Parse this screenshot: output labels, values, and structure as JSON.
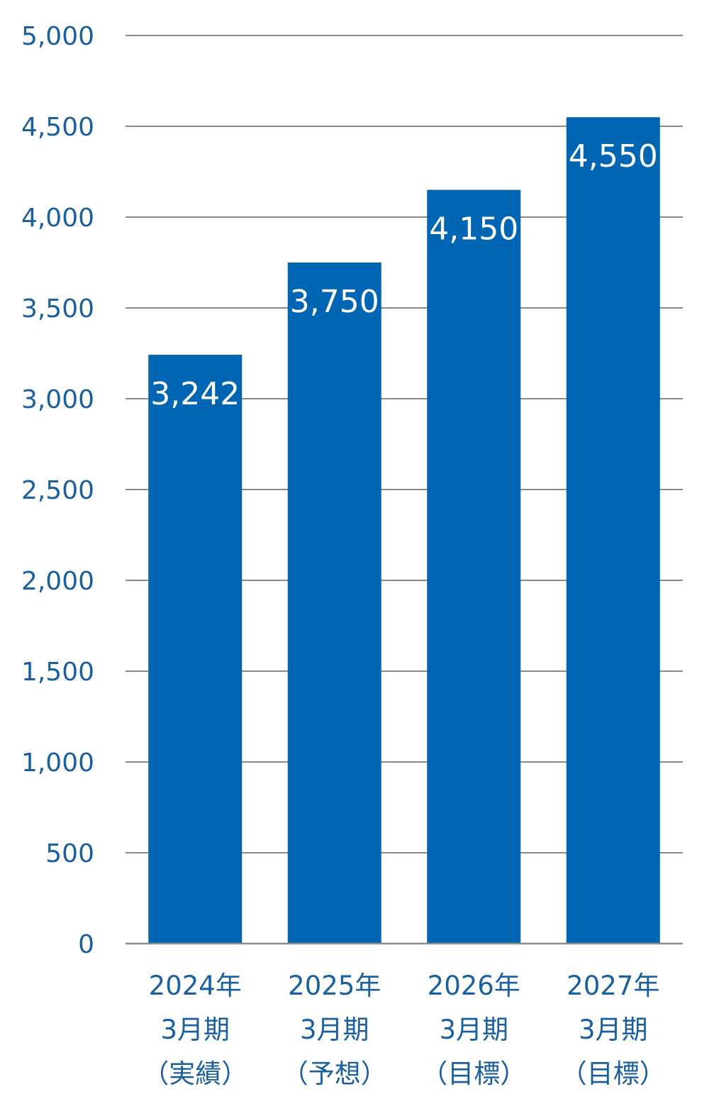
{
  "colors": {
    "bar": "#0066b3",
    "axis_text": "#1a5f9e",
    "gridline": "#8c8c8c",
    "data_label": "#ffffff"
  },
  "chart_data": {
    "type": "bar",
    "categories": [
      [
        "2024年",
        "3月期",
        "（実績）"
      ],
      [
        "2025年",
        "3月期",
        "（予想）"
      ],
      [
        "2026年",
        "3月期",
        "（目標）"
      ],
      [
        "2027年",
        "3月期",
        "（目標）"
      ]
    ],
    "values": [
      3242,
      3750,
      4150,
      4550
    ],
    "data_labels": [
      "3,242",
      "3,750",
      "4,150",
      "4,550"
    ],
    "ylim": [
      0,
      5000
    ],
    "yticks": [
      0,
      500,
      1000,
      1500,
      2000,
      2500,
      3000,
      3500,
      4000,
      4500,
      5000
    ],
    "ytick_labels": [
      "0",
      "500",
      "1,000",
      "1,500",
      "2,000",
      "2,500",
      "3,000",
      "3,500",
      "4,000",
      "4,500",
      "5,000"
    ],
    "grid": true,
    "legend": "none"
  }
}
